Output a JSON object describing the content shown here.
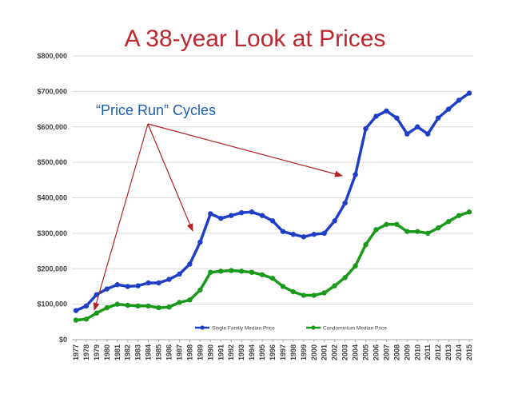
{
  "slide": {
    "title": "A 38-year Look at Prices",
    "annotation": "“Price Run” Cycles"
  },
  "colors": {
    "title": "#c0262d",
    "annotation": "#1f5fb0",
    "arrow": "#b22222",
    "single_family": "#1f3fc8",
    "condominium": "#1a9a1a",
    "grid": "#d9d9d9"
  },
  "chart_data": {
    "type": "line",
    "title": "",
    "xlabel": "",
    "ylabel": "",
    "ylim": [
      0,
      800000
    ],
    "yticks": [
      0,
      100000,
      200000,
      300000,
      400000,
      500000,
      600000,
      700000,
      800000
    ],
    "ytick_labels": [
      "$0",
      "$100,000",
      "$200,000",
      "$300,000",
      "$400,000",
      "$500,000",
      "$600,000",
      "$700,000",
      "$800,000"
    ],
    "grid": "horizontal",
    "legend_position": "bottom",
    "x": [
      "1977",
      "1978",
      "1979",
      "1980",
      "1981",
      "1982",
      "1983",
      "1984",
      "1985",
      "1986",
      "1987",
      "1988",
      "1989",
      "1990",
      "1991",
      "1992",
      "1993",
      "1994",
      "1995",
      "1996",
      "1997",
      "1998",
      "1999",
      "2000",
      "2001",
      "2002",
      "2003",
      "2004",
      "2005",
      "2006",
      "2007",
      "2008",
      "2009",
      "2010",
      "2011",
      "2012",
      "2013",
      "2014",
      "2015"
    ],
    "series": [
      {
        "name": "Single Family Median Price",
        "color": "#1f3fc8",
        "values": [
          82000,
          95000,
          127000,
          143000,
          155000,
          150000,
          152000,
          160000,
          160000,
          170000,
          185000,
          213000,
          275000,
          355000,
          342000,
          350000,
          358000,
          360000,
          350000,
          335000,
          305000,
          297000,
          290000,
          297000,
          300000,
          335000,
          385000,
          465000,
          595000,
          630000,
          645000,
          625000,
          580000,
          600000,
          580000,
          625000,
          650000,
          675000,
          695000
        ]
      },
      {
        "name": "Condominium Median Price",
        "color": "#1a9a1a",
        "values": [
          55000,
          58000,
          75000,
          90000,
          100000,
          97000,
          95000,
          95000,
          90000,
          92000,
          105000,
          112000,
          140000,
          190000,
          193000,
          195000,
          193000,
          190000,
          183000,
          173000,
          150000,
          135000,
          125000,
          125000,
          132000,
          152000,
          175000,
          208000,
          268000,
          310000,
          325000,
          325000,
          305000,
          305000,
          300000,
          315000,
          333000,
          350000,
          360000
        ]
      }
    ]
  }
}
